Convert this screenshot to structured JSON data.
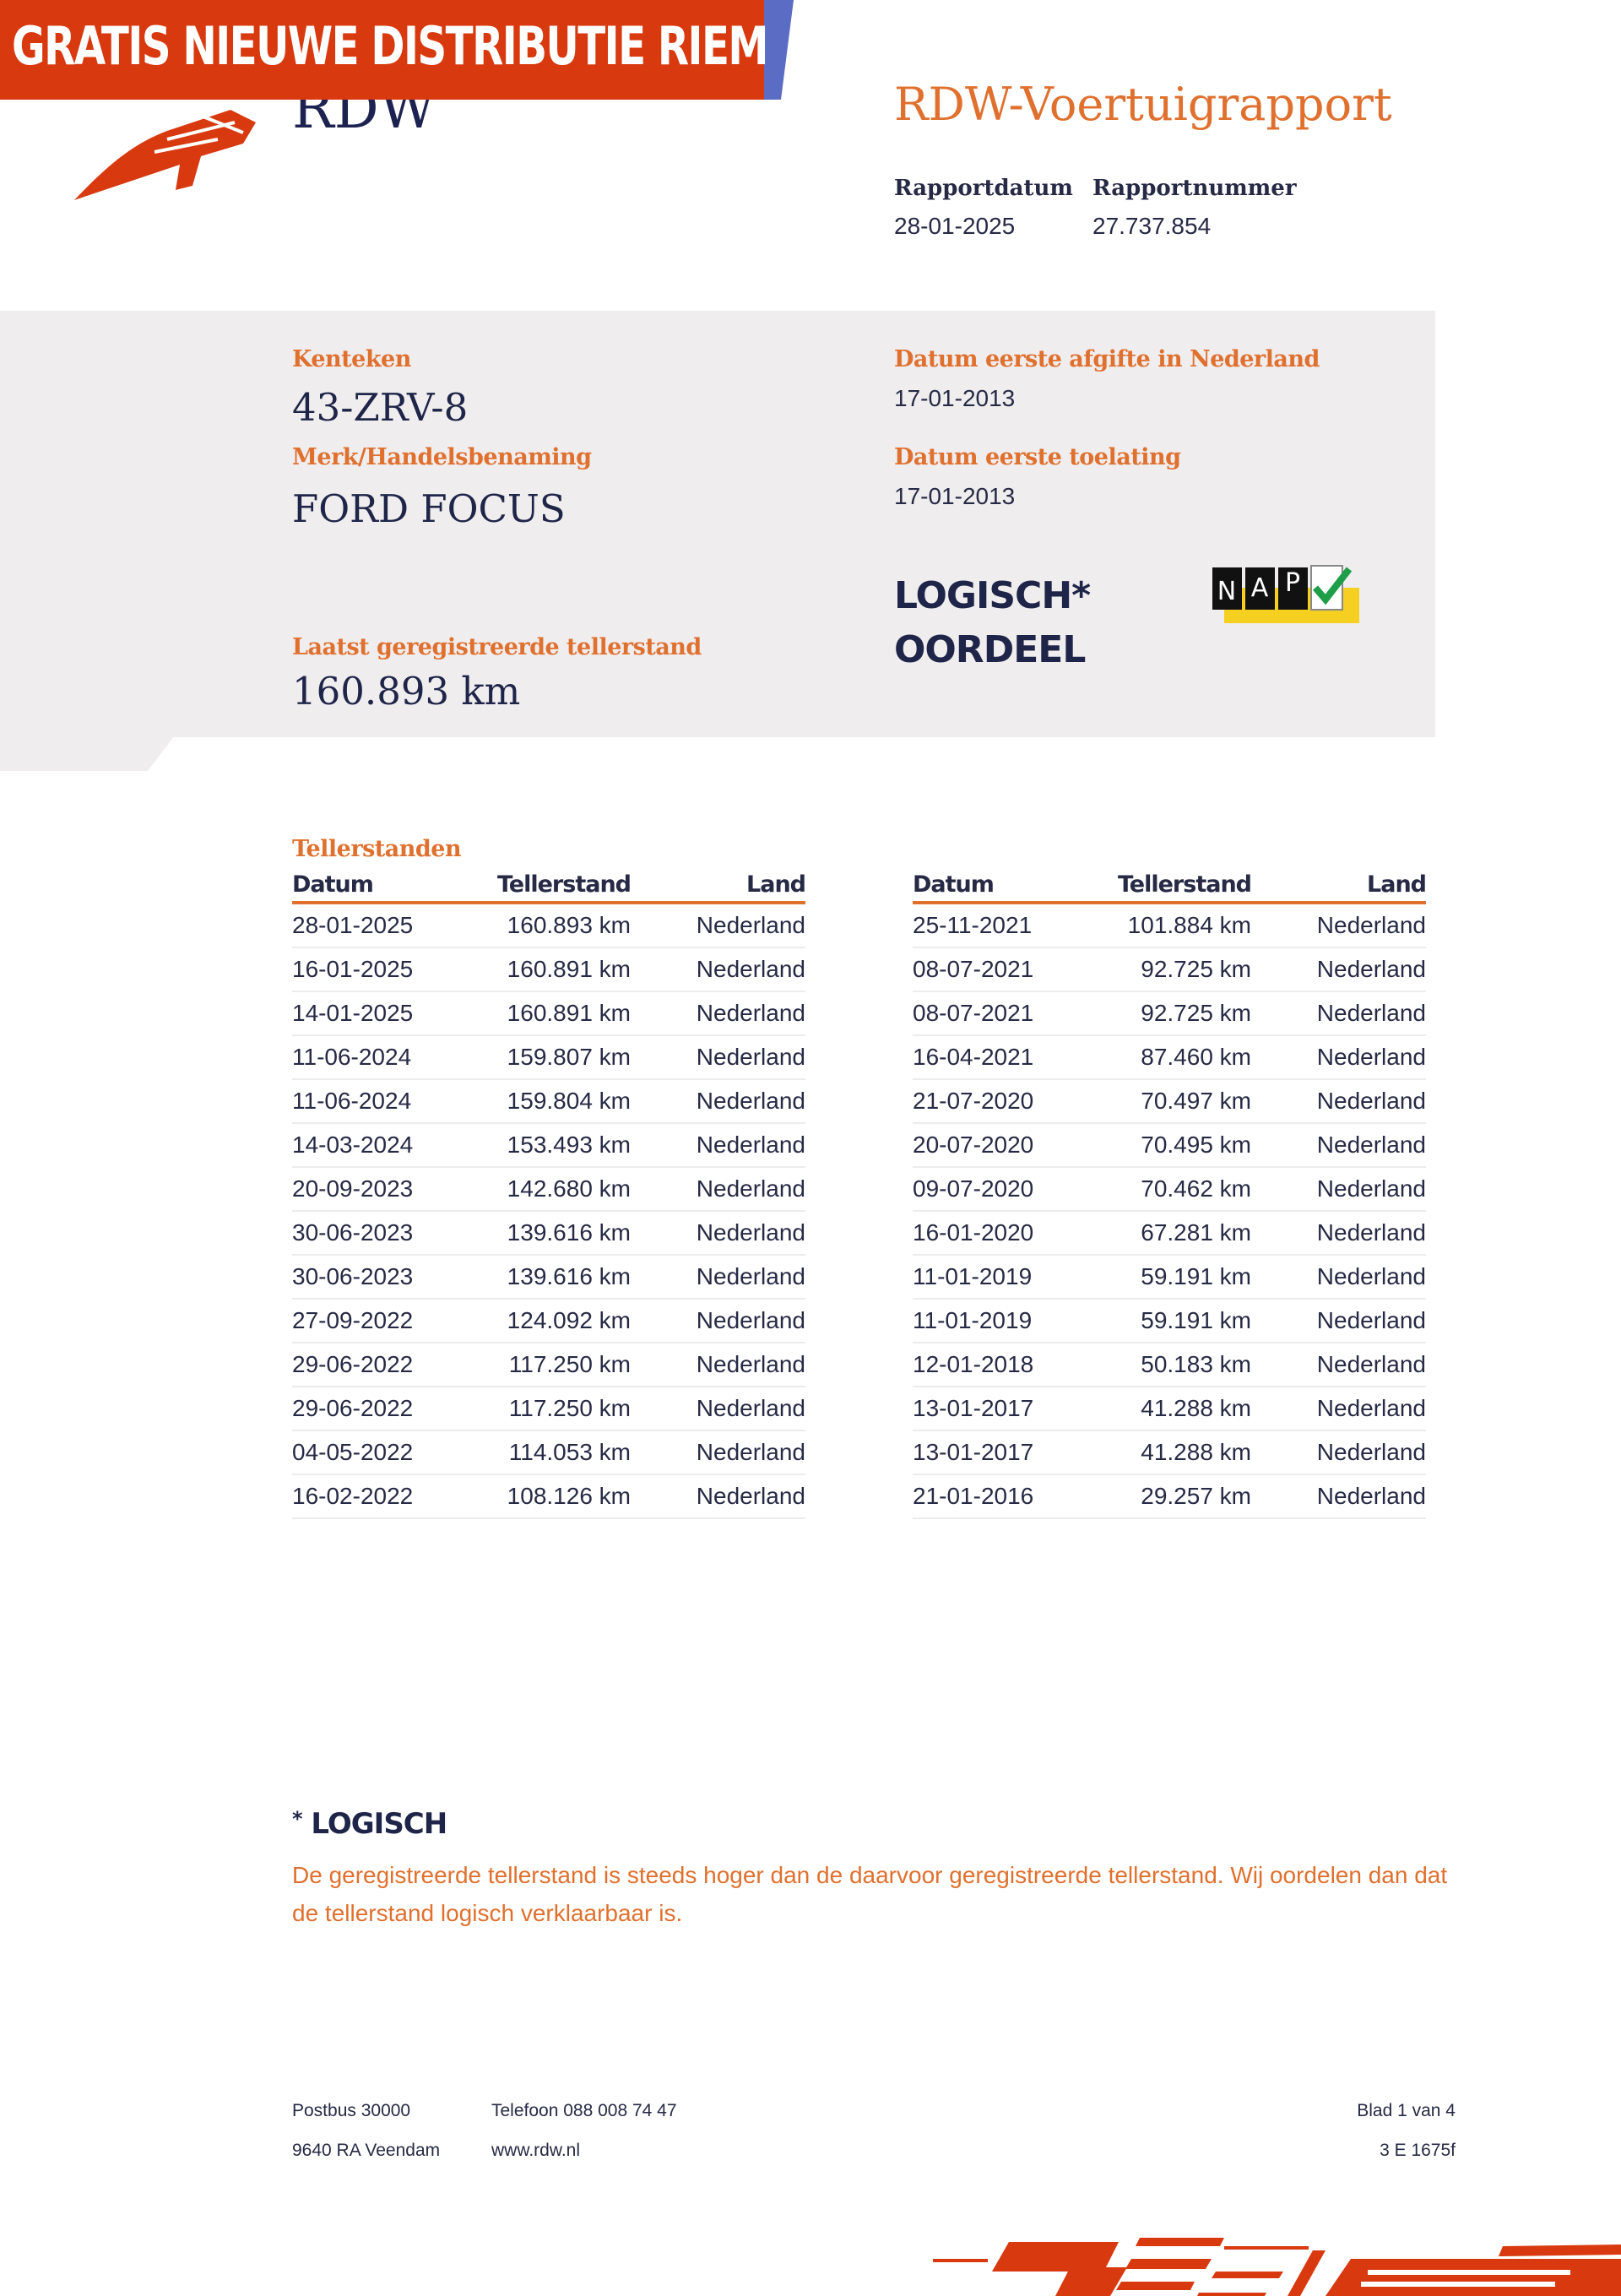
{
  "banner": {
    "text": "GRATIS NIEUWE DISTRIBUTIE RIEM",
    "color": "#d8390f",
    "stripe_color": "#5a6cc3"
  },
  "logo": {
    "text": "RDW",
    "icon": "feather-logo-icon"
  },
  "header": {
    "title": "RDW-Voertuigrapport",
    "report_date_label": "Rapportdatum",
    "report_date": "28-01-2025",
    "report_number_label": "Rapportnummer",
    "report_number": "27.737.854"
  },
  "vehicle": {
    "plate_label": "Kenteken",
    "plate": "43-ZRV-8",
    "make_label": "Merk/Handelsbenaming",
    "make": "FORD FOCUS",
    "first_issue_nl_label": "Datum eerste afgifte in Nederland",
    "first_issue_nl": "17-01-2013",
    "first_admission_label": "Datum eerste toelating",
    "first_admission": "17-01-2013",
    "last_odometer_label": "Laatst geregistreerde tellerstand",
    "last_odometer": "160.893 km",
    "verdict_line1": "LOGISCH*",
    "verdict_line2": "OORDEEL",
    "nap_letters": [
      "N",
      "A",
      "P"
    ],
    "nap_icon": "nap-check-icon"
  },
  "odometer": {
    "title": "Tellerstanden",
    "headers": {
      "date": "Datum",
      "reading": "Tellerstand",
      "country": "Land"
    },
    "left": [
      [
        "28-01-2025",
        "160.893 km",
        "Nederland"
      ],
      [
        "16-01-2025",
        "160.891 km",
        "Nederland"
      ],
      [
        "14-01-2025",
        "160.891 km",
        "Nederland"
      ],
      [
        "11-06-2024",
        "159.807 km",
        "Nederland"
      ],
      [
        "11-06-2024",
        "159.804 km",
        "Nederland"
      ],
      [
        "14-03-2024",
        "153.493 km",
        "Nederland"
      ],
      [
        "20-09-2023",
        "142.680 km",
        "Nederland"
      ],
      [
        "30-06-2023",
        "139.616 km",
        "Nederland"
      ],
      [
        "30-06-2023",
        "139.616 km",
        "Nederland"
      ],
      [
        "27-09-2022",
        "124.092 km",
        "Nederland"
      ],
      [
        "29-06-2022",
        "117.250 km",
        "Nederland"
      ],
      [
        "29-06-2022",
        "117.250 km",
        "Nederland"
      ],
      [
        "04-05-2022",
        "114.053 km",
        "Nederland"
      ],
      [
        "16-02-2022",
        "108.126 km",
        "Nederland"
      ]
    ],
    "right": [
      [
        "25-11-2021",
        "101.884 km",
        "Nederland"
      ],
      [
        "08-07-2021",
        "92.725 km",
        "Nederland"
      ],
      [
        "08-07-2021",
        "92.725 km",
        "Nederland"
      ],
      [
        "16-04-2021",
        "87.460 km",
        "Nederland"
      ],
      [
        "21-07-2020",
        "70.497 km",
        "Nederland"
      ],
      [
        "20-07-2020",
        "70.495 km",
        "Nederland"
      ],
      [
        "09-07-2020",
        "70.462 km",
        "Nederland"
      ],
      [
        "16-01-2020",
        "67.281 km",
        "Nederland"
      ],
      [
        "11-01-2019",
        "59.191 km",
        "Nederland"
      ],
      [
        "11-01-2019",
        "59.191 km",
        "Nederland"
      ],
      [
        "12-01-2018",
        "50.183 km",
        "Nederland"
      ],
      [
        "13-01-2017",
        "41.288 km",
        "Nederland"
      ],
      [
        "13-01-2017",
        "41.288 km",
        "Nederland"
      ],
      [
        "21-01-2016",
        "29.257 km",
        "Nederland"
      ]
    ]
  },
  "note": {
    "star": "*",
    "title": "LOGISCH",
    "text": "De geregistreerde tellerstand is steeds hoger dan de daarvoor geregistreerde tellerstand. Wij oordelen dan dat de tellerstand logisch verklaarbaar is."
  },
  "footer": {
    "postbus": "Postbus 30000",
    "city": "9640 RA Veendam",
    "phone": "Telefoon 088 008 74 47",
    "web": "www.rdw.nl",
    "page": "Blad 1 van 4",
    "code": "3 E 1675f"
  },
  "colors": {
    "accent": "#e0702e",
    "navy": "#1f2548",
    "panel": "#efedee",
    "nap_yellow": "#f5d020",
    "nap_check": "#1e9e48"
  }
}
